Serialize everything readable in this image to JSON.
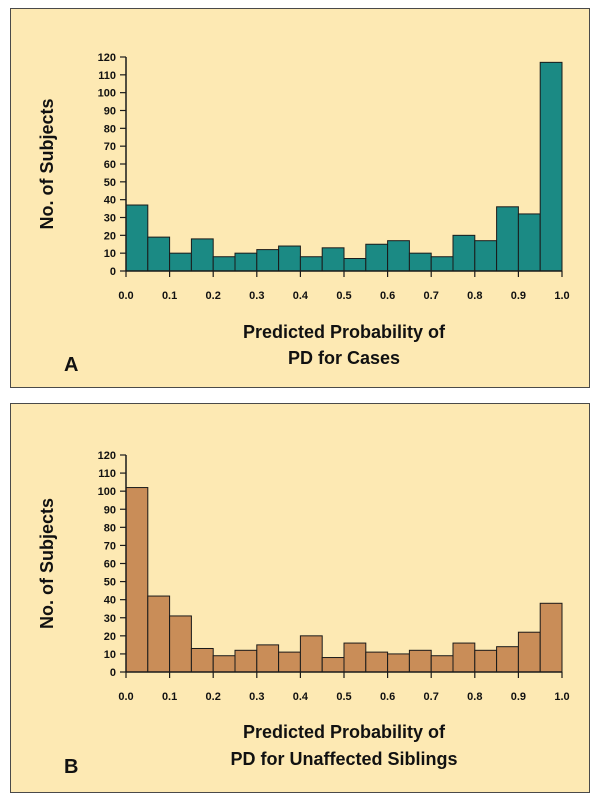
{
  "chart_data": [
    {
      "type": "bar",
      "panel": "A",
      "ylabel": "No. of Subjects",
      "xlabel_lines": [
        "Predicted Probability of",
        "PD for Cases"
      ],
      "xlim": [
        0,
        1
      ],
      "ylim": [
        0,
        120
      ],
      "x_ticks": [
        "0.0",
        "0.1",
        "0.2",
        "0.3",
        "0.4",
        "0.5",
        "0.6",
        "0.7",
        "0.8",
        "0.9",
        "1.0"
      ],
      "y_ticks": [
        "0",
        "10",
        "20",
        "30",
        "40",
        "50",
        "60",
        "70",
        "80",
        "90",
        "100",
        "110",
        "120"
      ],
      "bin_width": 0.05,
      "values": [
        37,
        19,
        10,
        18,
        8,
        10,
        12,
        14,
        8,
        13,
        7,
        15,
        17,
        10,
        8,
        20,
        17,
        36,
        32,
        117
      ],
      "bar_color": "#1b8a84"
    },
    {
      "type": "bar",
      "panel": "B",
      "ylabel": "No. of Subjects",
      "xlabel_lines": [
        "Predicted Probability of",
        "PD for Unaffected Siblings"
      ],
      "xlim": [
        0,
        1
      ],
      "ylim": [
        0,
        120
      ],
      "x_ticks": [
        "0.0",
        "0.1",
        "0.2",
        "0.3",
        "0.4",
        "0.5",
        "0.6",
        "0.7",
        "0.8",
        "0.9",
        "1.0"
      ],
      "y_ticks": [
        "0",
        "10",
        "20",
        "30",
        "40",
        "50",
        "60",
        "70",
        "80",
        "90",
        "100",
        "110",
        "120"
      ],
      "bin_width": 0.05,
      "values": [
        102,
        42,
        31,
        13,
        9,
        12,
        15,
        11,
        20,
        8,
        16,
        11,
        10,
        12,
        9,
        16,
        12,
        14,
        22,
        38
      ],
      "bar_color": "#c98d58"
    }
  ]
}
